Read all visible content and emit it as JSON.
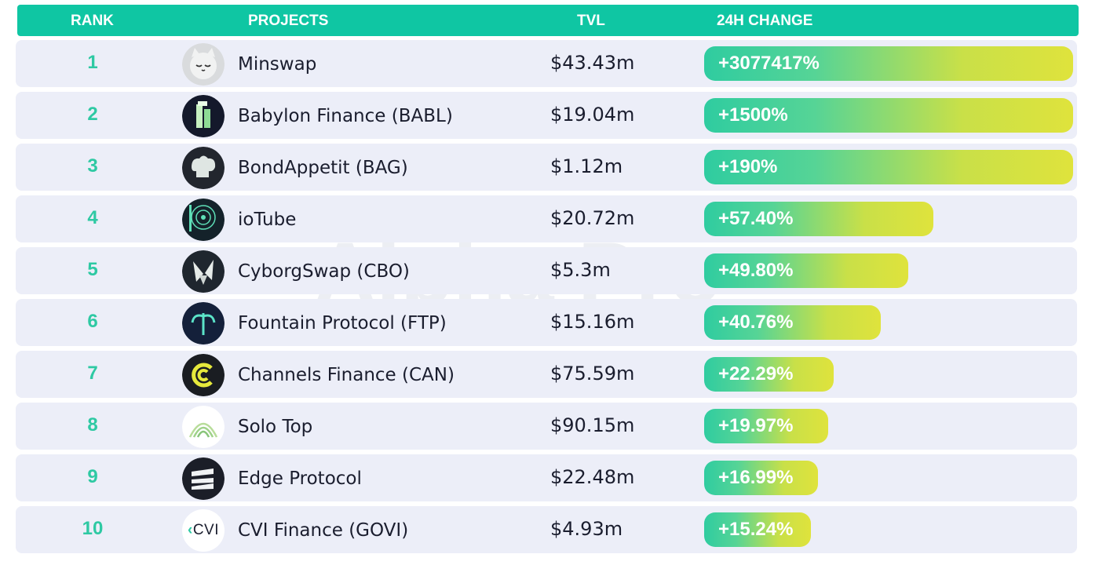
{
  "header": {
    "rank": "RANK",
    "projects": "PROJECTS",
    "tvl": "TVL",
    "change": "24H CHANGE"
  },
  "watermark": "Alpha Pro",
  "chart_data": {
    "type": "bar",
    "title": "",
    "xlabel": "",
    "ylabel": "24H CHANGE",
    "categories": [
      "Minswap",
      "Babylon Finance (BABL)",
      "BondAppetit (BAG)",
      "ioTube",
      "CyborgSwap (CBO)",
      "Fountain Protocol (FTP)",
      "Channels Finance (CAN)",
      "Solo Top",
      "Edge Protocol",
      "CVI Finance (GOVI)"
    ],
    "rows": [
      {
        "rank": "1",
        "project": "Minswap",
        "tvl": "$43.43m",
        "change_label": "+3077417%",
        "change": 3077417,
        "logo_icon": "cat-face-icon"
      },
      {
        "rank": "2",
        "project": "Babylon Finance (BABL)",
        "tvl": "$19.04m",
        "change_label": "+1500%",
        "change": 1500,
        "logo_icon": "tower-icon"
      },
      {
        "rank": "3",
        "project": "BondAppetit (BAG)",
        "tvl": "$1.12m",
        "change_label": "+190%",
        "change": 190,
        "logo_icon": "chef-hat-icon"
      },
      {
        "rank": "4",
        "project": "ioTube",
        "tvl": "$20.72m",
        "change_label": "+57.40%",
        "change": 57.4,
        "logo_icon": "tube-icon"
      },
      {
        "rank": "5",
        "project": "CyborgSwap (CBO)",
        "tvl": "$5.3m",
        "change_label": "+49.80%",
        "change": 49.8,
        "logo_icon": "rabbit-icon"
      },
      {
        "rank": "6",
        "project": "Fountain Protocol (FTP)",
        "tvl": "$15.16m",
        "change_label": "+40.76%",
        "change": 40.76,
        "logo_icon": "fountain-icon"
      },
      {
        "rank": "7",
        "project": "Channels Finance (CAN)",
        "tvl": "$75.59m",
        "change_label": "+22.29%",
        "change": 22.29,
        "logo_icon": "channels-c-icon"
      },
      {
        "rank": "8",
        "project": "Solo Top",
        "tvl": "$90.15m",
        "change_label": "+19.97%",
        "change": 19.97,
        "logo_icon": "arch-icon"
      },
      {
        "rank": "9",
        "project": "Edge Protocol",
        "tvl": "$22.48m",
        "change_label": "+16.99%",
        "change": 16.99,
        "logo_icon": "edge-icon"
      },
      {
        "rank": "10",
        "project": "CVI Finance (GOVI)",
        "tvl": "$4.93m",
        "change_label": "+15.24%",
        "change": 15.24,
        "logo_icon": "cvi-icon",
        "logo_text": "CVI"
      }
    ],
    "bar_scale": "capped",
    "bar_cap": 100,
    "bar_fill": [
      1.0,
      1.0,
      1.0,
      0.636,
      0.571,
      0.5,
      0.377,
      0.363,
      0.336,
      0.319
    ],
    "colors": {
      "header_bg": "#0fc6a3",
      "rank_text": "#2ec9a3",
      "row_bg": "#eceef8",
      "bar_start": "#2fcca0",
      "bar_end": "#dfe33c"
    }
  }
}
